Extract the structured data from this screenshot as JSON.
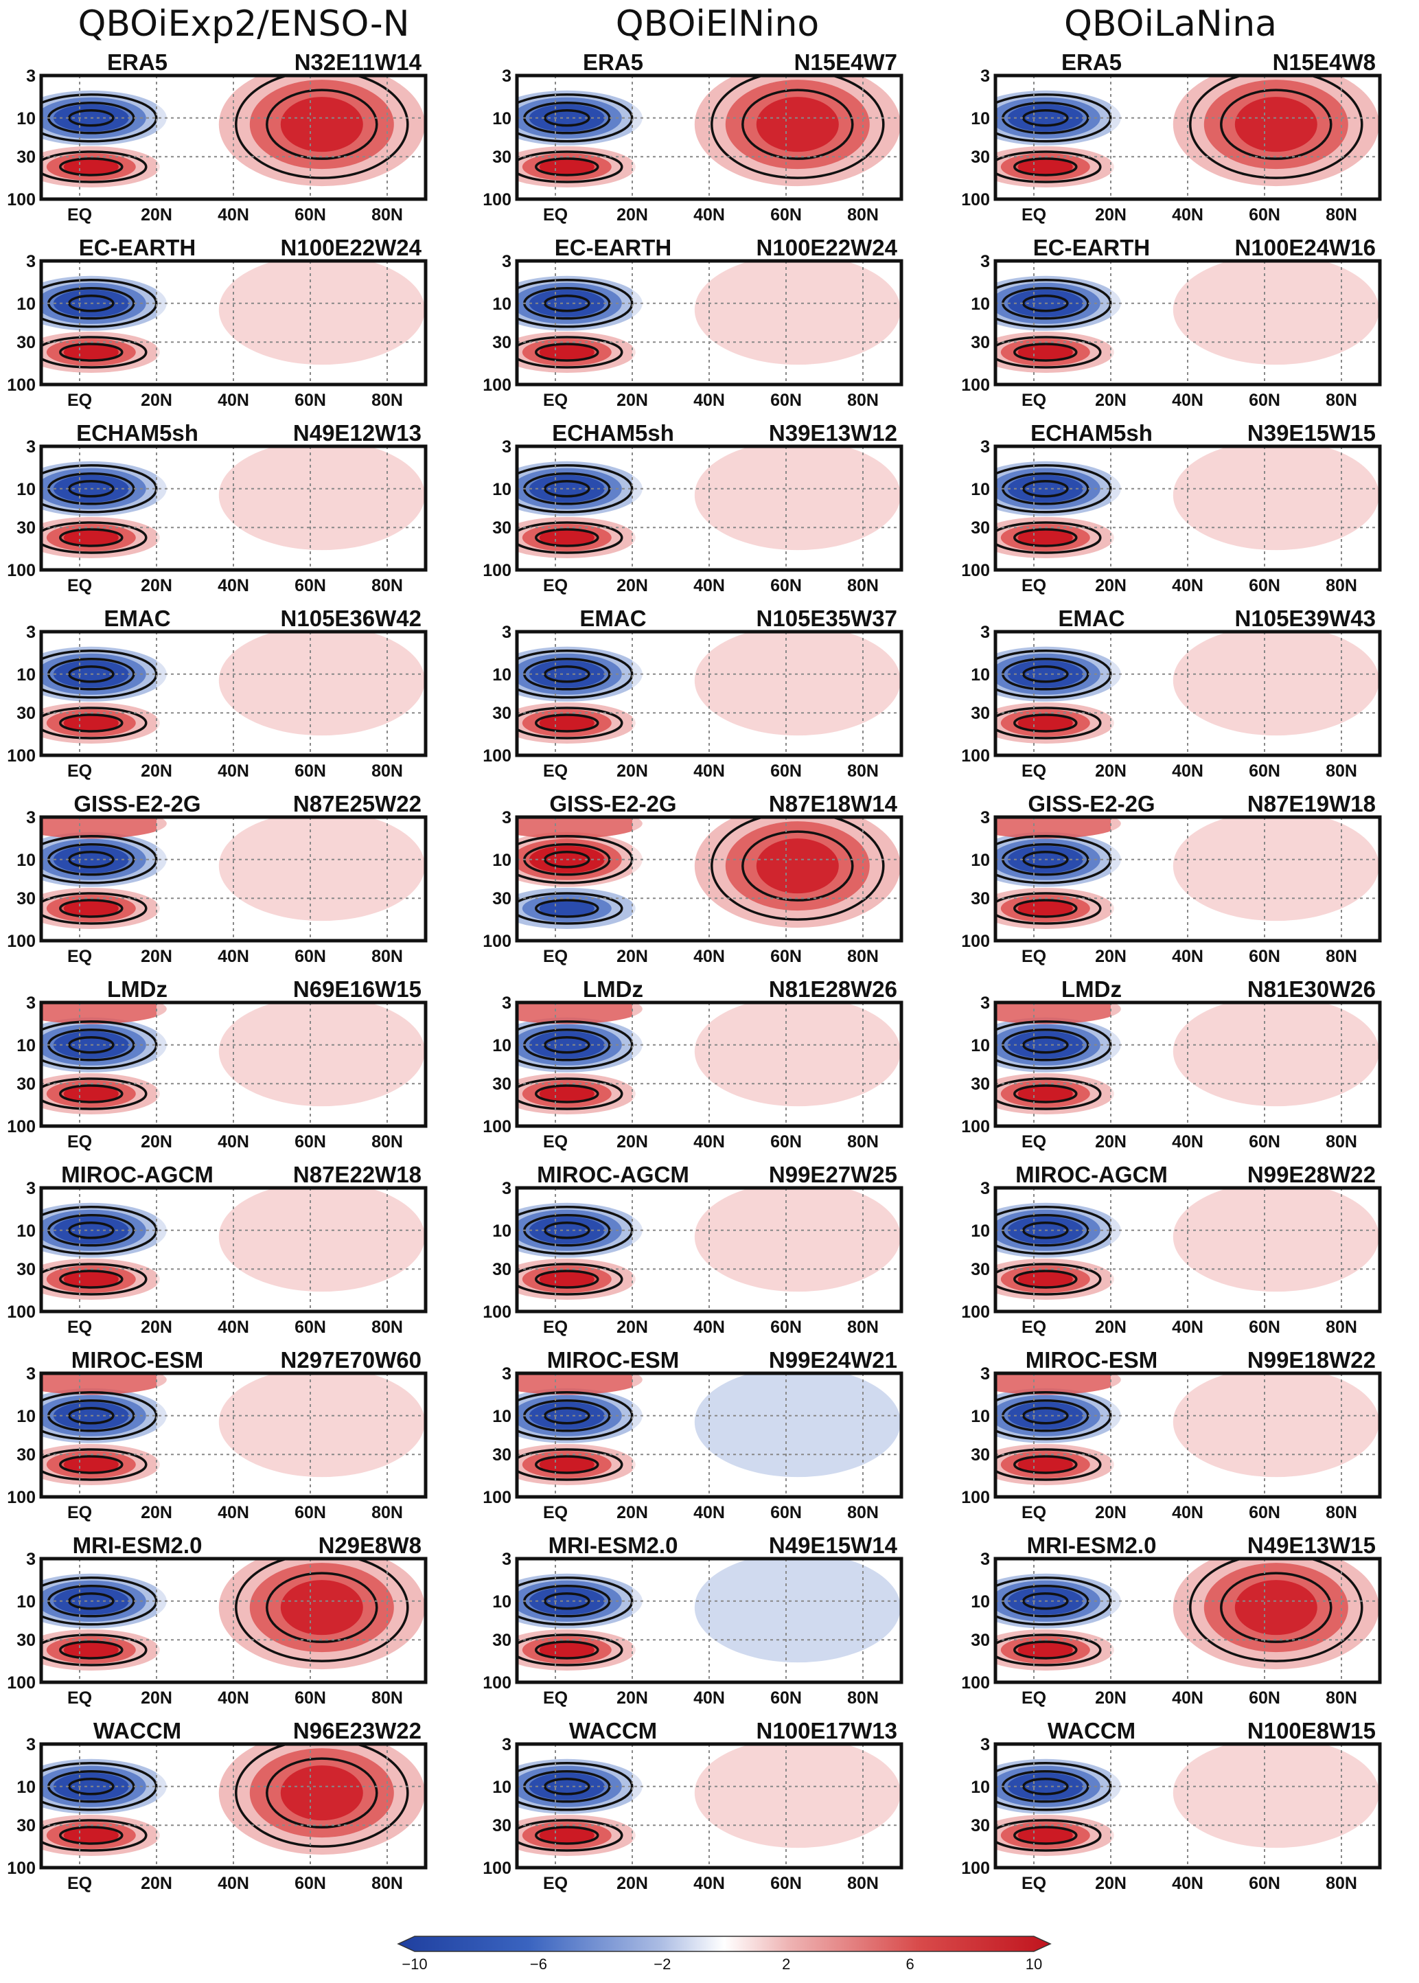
{
  "column_titles": [
    "QBOiExp2/ENSO-N",
    "QBOiElNino",
    "QBOiLaNina"
  ],
  "chart_data": {
    "type": "heatmap",
    "x_ticks": [
      "EQ",
      "20N",
      "40N",
      "60N",
      "80N"
    ],
    "x_values": [
      0,
      20,
      40,
      60,
      80
    ],
    "xlim": [
      -10,
      90
    ],
    "y_ticks": [
      "3",
      "10",
      "30",
      "100"
    ],
    "y_values": [
      3,
      10,
      30,
      100
    ],
    "ylim": [
      3,
      100
    ],
    "y_scale": "log",
    "grid": true,
    "colorbar": {
      "ticks": [
        "−10",
        "−6",
        "−2",
        "2",
        "6",
        "10"
      ],
      "tick_values": [
        -10,
        -6,
        -2,
        2,
        6,
        10
      ],
      "range": [
        -10,
        10
      ],
      "colors": [
        "#2244aa",
        "#ffffff",
        "#cc1122"
      ]
    },
    "rows": [
      {
        "model": "ERA5",
        "panels": [
          "N32E11W14",
          "N15E4W7",
          "N15E4W8"
        ]
      },
      {
        "model": "EC-EARTH",
        "panels": [
          "N100E22W24",
          "N100E22W24",
          "N100E24W16"
        ]
      },
      {
        "model": "ECHAM5sh",
        "panels": [
          "N49E12W13",
          "N39E13W12",
          "N39E15W15"
        ]
      },
      {
        "model": "EMAC",
        "panels": [
          "N105E36W42",
          "N105E35W37",
          "N105E39W43"
        ]
      },
      {
        "model": "GISS-E2-2G",
        "panels": [
          "N87E25W22",
          "N87E18W14",
          "N87E19W18"
        ]
      },
      {
        "model": "LMDz",
        "panels": [
          "N69E16W15",
          "N81E28W26",
          "N81E30W26"
        ]
      },
      {
        "model": "MIROC-AGCM",
        "panels": [
          "N87E22W18",
          "N99E27W25",
          "N99E28W22"
        ]
      },
      {
        "model": "MIROC-ESM",
        "panels": [
          "N297E70W60",
          "N99E24W21",
          "N99E18W22"
        ]
      },
      {
        "model": "MRI-ESM2.0",
        "panels": [
          "N29E8W8",
          "N49E15W14",
          "N49E13W15"
        ]
      },
      {
        "model": "WACCM",
        "panels": [
          "N96E23W22",
          "N100E17W13",
          "N100E8W15"
        ]
      }
    ]
  }
}
